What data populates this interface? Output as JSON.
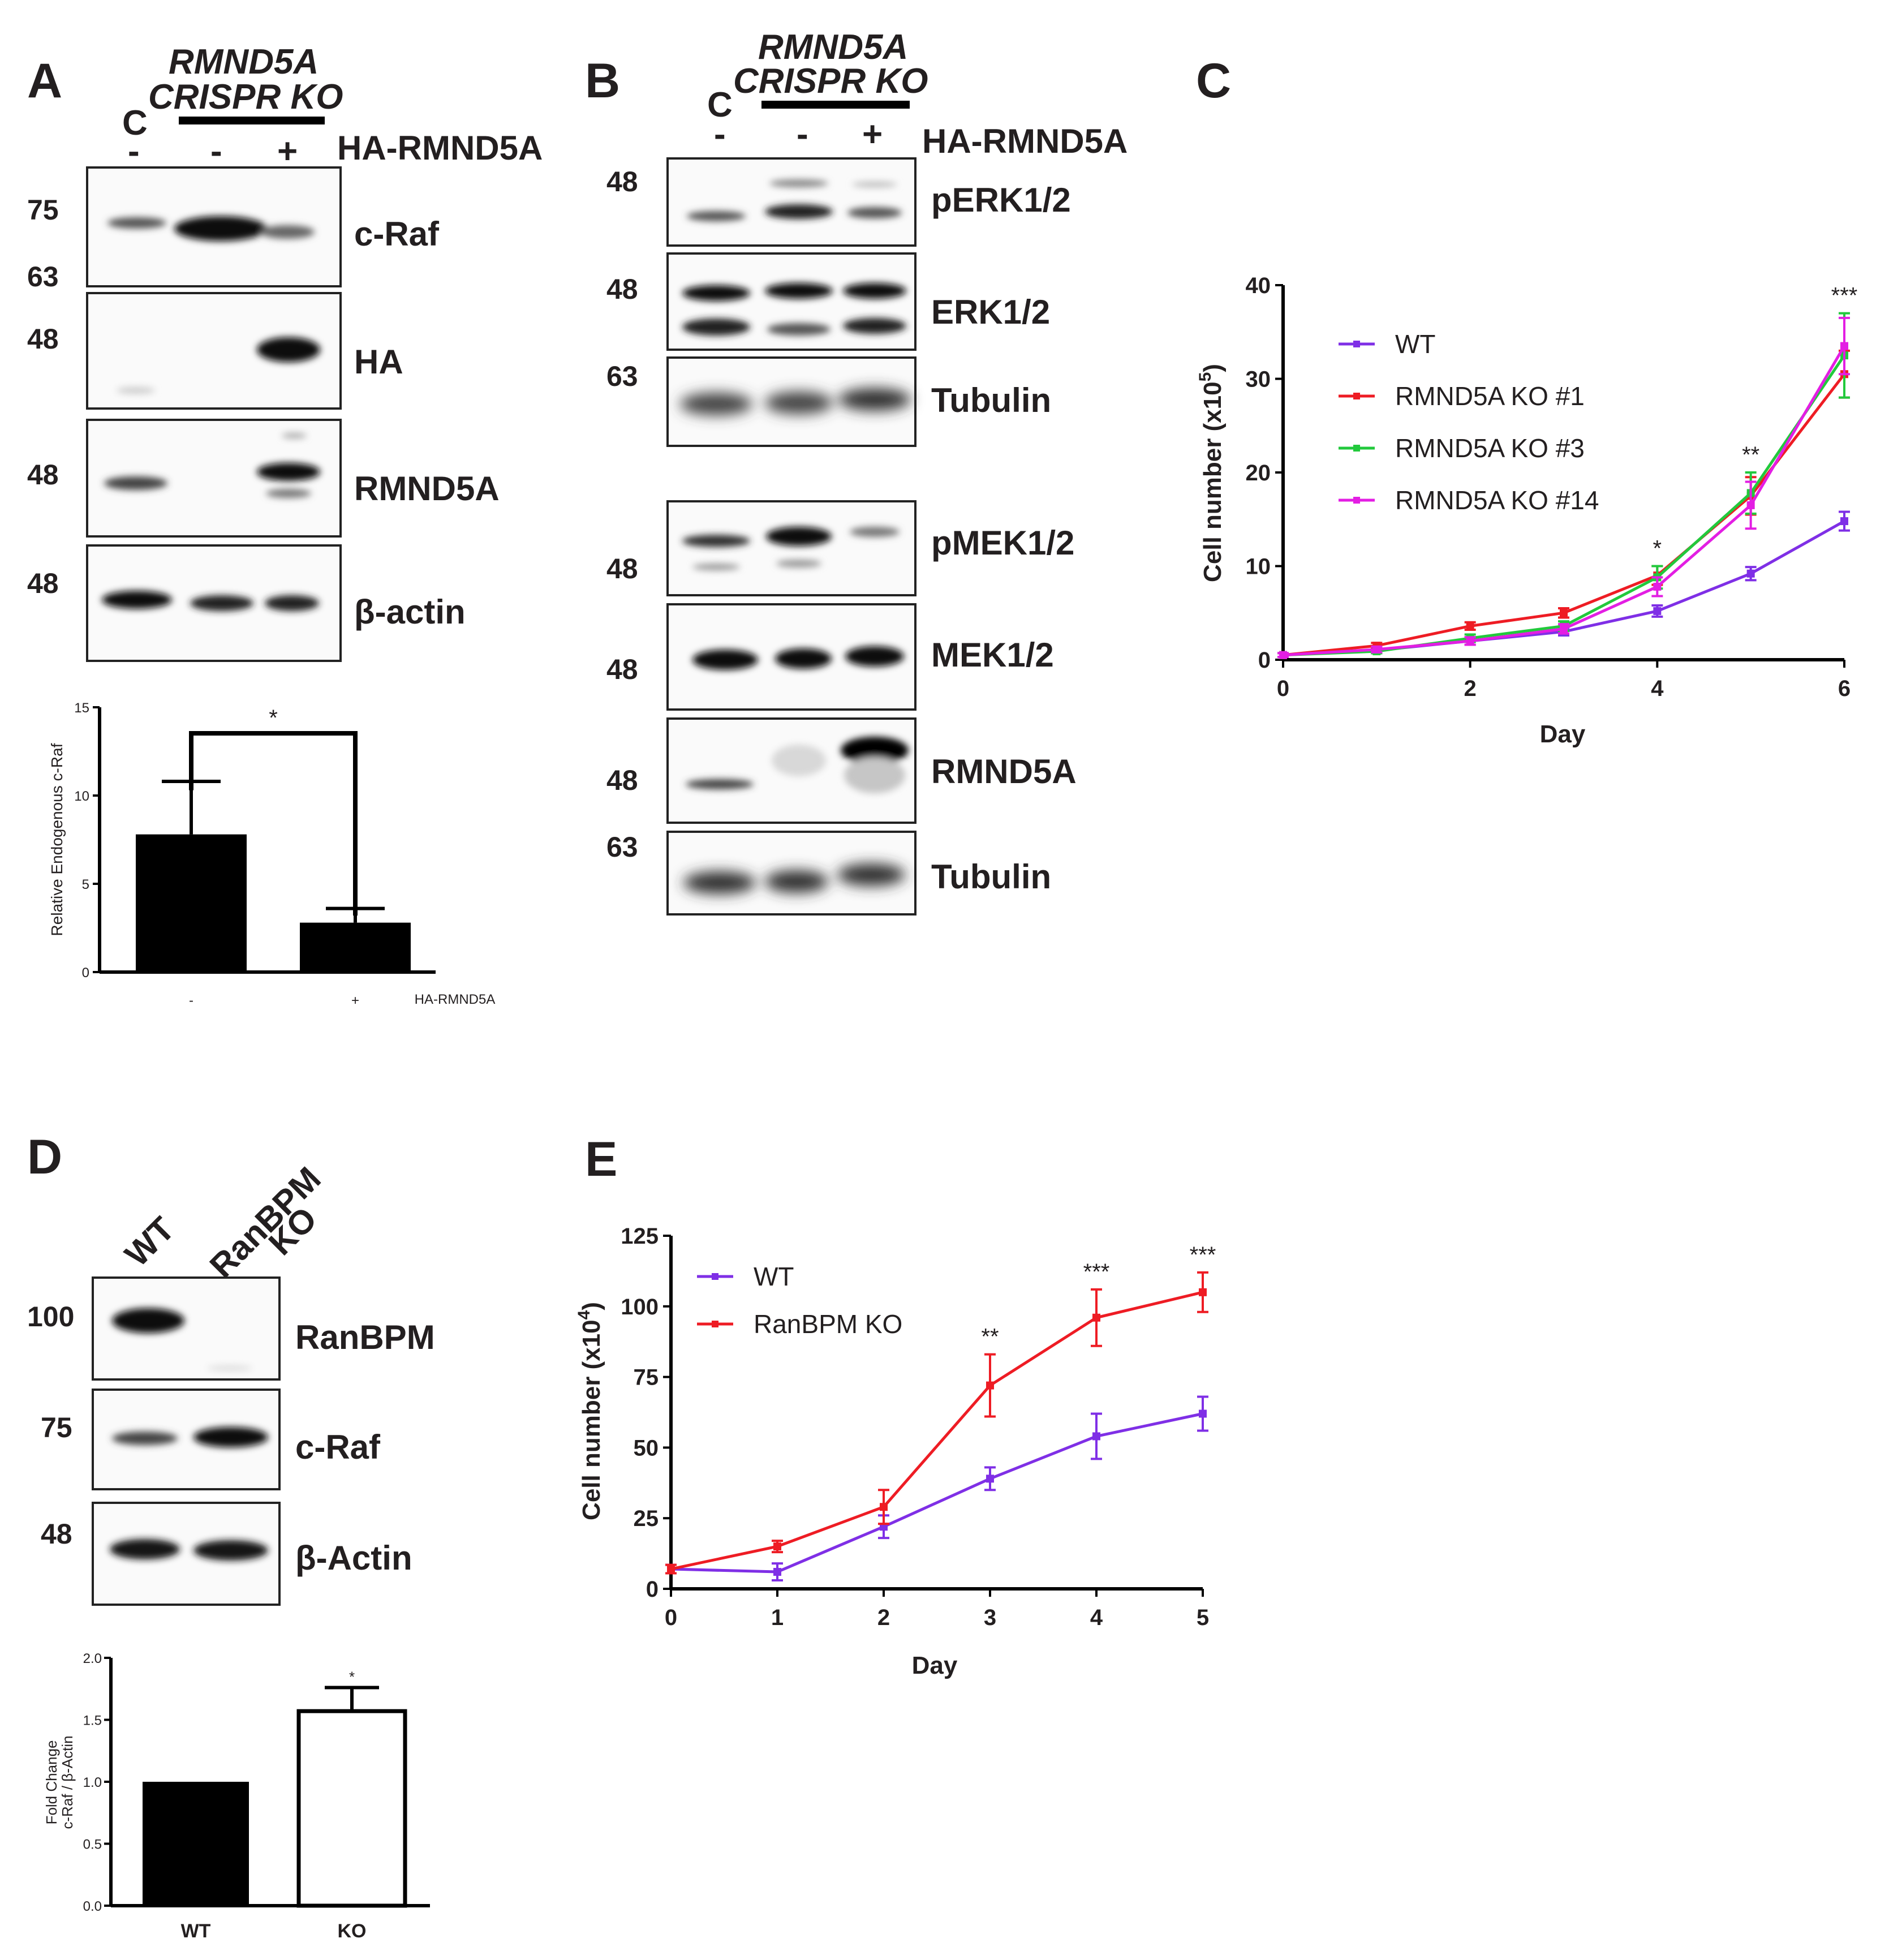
{
  "colors": {
    "wt": "#7f2fe6",
    "ko1": "#ee1c24",
    "ko3": "#22c93c",
    "ko14": "#e31ee3",
    "ranbpmko": "#ee1c24"
  },
  "panelA": {
    "letter": "A",
    "group_title_1": "RMND5A",
    "group_title_2": "CRISPR KO",
    "control_label": "C",
    "signs": [
      "-",
      "-",
      "+"
    ],
    "treatment": "HA-RMND5A",
    "blots": [
      {
        "name": "c-Raf",
        "markers": [
          "75",
          "63"
        ]
      },
      {
        "name": "HA",
        "markers": [
          "48"
        ]
      },
      {
        "name": "RMND5A",
        "markers": [
          "48"
        ]
      },
      {
        "name": "β-actin",
        "markers": [
          "48"
        ]
      }
    ]
  },
  "panelB": {
    "letter": "B",
    "group_title_1": "RMND5A",
    "group_title_2": "CRISPR KO",
    "control_label": "C",
    "signs": [
      "-",
      "-",
      "+"
    ],
    "treatment": "HA-RMND5A",
    "blots": [
      {
        "name": "pERK1/2",
        "markers": [
          "48"
        ]
      },
      {
        "name": "ERK1/2",
        "markers": [
          "48"
        ]
      },
      {
        "name": "Tubulin",
        "markers": [
          "63"
        ]
      },
      {
        "name": "pMEK1/2",
        "markers": [
          "48"
        ]
      },
      {
        "name": "MEK1/2",
        "markers": [
          "48"
        ]
      },
      {
        "name": "RMND5A",
        "markers": [
          "48"
        ]
      },
      {
        "name": "Tubulin",
        "markers": [
          "63"
        ]
      }
    ]
  },
  "panelD": {
    "letter": "D",
    "lanes": [
      "WT",
      "RanBPM",
      "KO"
    ],
    "blots": [
      {
        "name": "RanBPM",
        "markers": [
          "100"
        ]
      },
      {
        "name": "c-Raf",
        "markers": [
          "75"
        ]
      },
      {
        "name": "β-Actin",
        "markers": [
          "48"
        ]
      }
    ]
  },
  "panelC_letter": "C",
  "panelE_letter": "E",
  "chart_data": [
    {
      "id": "A-bar",
      "type": "bar",
      "ylabel": "Relative Endogenous c-Raf",
      "xlabel": "HA-RMND5A",
      "categories": [
        "-",
        "+"
      ],
      "values": [
        7.8,
        2.8
      ],
      "errors": [
        3.0,
        0.8
      ],
      "ylim": [
        0,
        15
      ],
      "yticks": [
        "0",
        "5",
        "10",
        "15"
      ],
      "significance": "*"
    },
    {
      "id": "C-line",
      "type": "line",
      "xlabel": "Day",
      "ylabel": "Cell number (x10",
      "ylabel_exp": "5",
      "ylabel_close": ")",
      "xlim": [
        0,
        6
      ],
      "ylim": [
        0,
        40
      ],
      "xticks": [
        "0",
        "2",
        "4",
        "6"
      ],
      "yticks": [
        "0",
        "10",
        "20",
        "30",
        "40"
      ],
      "x": [
        0,
        1,
        2,
        3,
        4,
        5,
        6
      ],
      "series": [
        {
          "name": "WT",
          "values": [
            0.5,
            1.0,
            2.0,
            3.0,
            5.2,
            9.2,
            14.8
          ],
          "errors": [
            0.2,
            0.3,
            0.4,
            0.4,
            0.6,
            0.7,
            1.0
          ]
        },
        {
          "name": "RMND5A KO #1",
          "values": [
            0.5,
            1.5,
            3.6,
            5.0,
            9.0,
            17.5,
            30.5
          ],
          "errors": [
            0.2,
            0.3,
            0.4,
            0.5,
            1.0,
            2.0,
            2.5
          ]
        },
        {
          "name": "RMND5A KO #3",
          "values": [
            0.5,
            0.9,
            2.3,
            3.6,
            8.8,
            17.8,
            32.5
          ],
          "errors": [
            0.2,
            0.2,
            0.4,
            0.5,
            1.2,
            2.2,
            4.5
          ]
        },
        {
          "name": "RMND5A KO #14",
          "values": [
            0.5,
            1.1,
            2.0,
            3.3,
            7.8,
            16.5,
            33.5
          ],
          "errors": [
            0.2,
            0.3,
            0.4,
            0.5,
            1.0,
            2.5,
            3.0
          ]
        }
      ],
      "significance": [
        {
          "day": 4,
          "mark": "*"
        },
        {
          "day": 5,
          "mark": "**"
        },
        {
          "day": 6,
          "mark": "***"
        }
      ]
    },
    {
      "id": "D-bar",
      "type": "bar",
      "ylabel": "Fold Change",
      "ylabel_2": "c-Raf / β-Actin",
      "categories": [
        "WT",
        "KO"
      ],
      "values": [
        1.0,
        1.57
      ],
      "errors": [
        0,
        0.19
      ],
      "ylim": [
        0,
        2.0
      ],
      "yticks": [
        "0.0",
        "0.5",
        "1.0",
        "1.5",
        "2.0"
      ],
      "significance": "*"
    },
    {
      "id": "E-line",
      "type": "line",
      "xlabel": "Day",
      "ylabel": "Cell number (x10",
      "ylabel_exp": "4",
      "ylabel_close": ")",
      "xlim": [
        0,
        5
      ],
      "ylim": [
        0,
        125
      ],
      "xticks": [
        "0",
        "1",
        "2",
        "3",
        "4",
        "5"
      ],
      "yticks": [
        "0",
        "25",
        "50",
        "75",
        "100",
        "125"
      ],
      "x": [
        0,
        1,
        2,
        3,
        4,
        5
      ],
      "series": [
        {
          "name": "WT",
          "values": [
            7,
            6,
            22,
            39,
            54,
            62
          ],
          "errors": [
            1.5,
            3,
            4,
            4,
            8,
            6
          ]
        },
        {
          "name": "RanBPM KO",
          "values": [
            7,
            15,
            29,
            72,
            96,
            105
          ],
          "errors": [
            1.5,
            2,
            6,
            11,
            10,
            7
          ]
        }
      ],
      "significance": [
        {
          "day": 3,
          "mark": "**"
        },
        {
          "day": 4,
          "mark": "***"
        },
        {
          "day": 5,
          "mark": "***"
        }
      ]
    }
  ]
}
